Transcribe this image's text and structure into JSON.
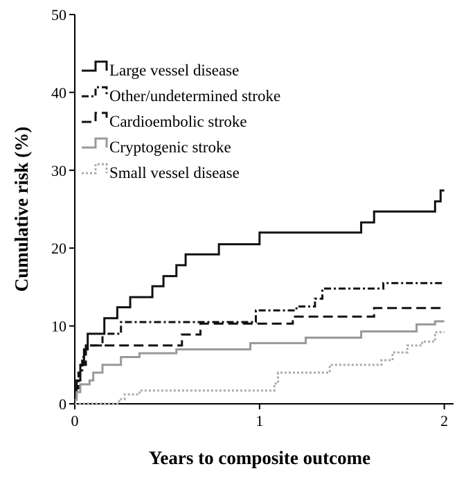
{
  "chart_data": {
    "type": "step",
    "x_label": "Years to composite outcome",
    "y_label": "Cumulative risk (%)",
    "xlim": [
      0,
      2.05
    ],
    "xticks": [
      0,
      1,
      2
    ],
    "ylim": [
      0,
      50
    ],
    "yticks": [
      0,
      10,
      20,
      30,
      40,
      50
    ],
    "grid": false,
    "legend": "upper left",
    "series": [
      {
        "name": "Large vessel disease",
        "color": "#111111",
        "dash": "solid",
        "x": [
          0,
          0.01,
          0.03,
          0.05,
          0.07,
          0.16,
          0.23,
          0.3,
          0.42,
          0.48,
          0.55,
          0.6,
          0.78,
          1.0,
          1.55,
          1.62,
          1.95,
          1.98,
          2.0
        ],
        "values": [
          1,
          3,
          5,
          7,
          9,
          11,
          12.4,
          13.7,
          15.1,
          16.4,
          17.8,
          19.2,
          20.5,
          22,
          23.3,
          24.7,
          26,
          27.4,
          27.4
        ]
      },
      {
        "name": "Other/undetermined stroke",
        "color": "#111111",
        "dash": "dashdot",
        "x": [
          0,
          0.02,
          0.04,
          0.06,
          0.15,
          0.25,
          0.98,
          1.2,
          1.3,
          1.34,
          1.67,
          2.0
        ],
        "values": [
          2,
          4,
          6,
          7.5,
          9,
          10.5,
          12,
          12.5,
          13.5,
          14.8,
          15.5,
          15.5
        ]
      },
      {
        "name": "Cardioembolic stroke",
        "color": "#111111",
        "dash": "dashed",
        "x": [
          0,
          0.03,
          0.06,
          0.58,
          0.68,
          1.18,
          1.62,
          2.0
        ],
        "values": [
          2,
          5,
          7.5,
          8.9,
          10.3,
          11.2,
          12.3,
          12.3
        ]
      },
      {
        "name": "Cryptogenic stroke",
        "color": "#999999",
        "dash": "solid",
        "x": [
          0,
          0.01,
          0.03,
          0.08,
          0.1,
          0.15,
          0.25,
          0.35,
          0.55,
          0.95,
          1.25,
          1.55,
          1.85,
          1.95,
          2.0
        ],
        "values": [
          0.5,
          1.5,
          2.5,
          3,
          4,
          5,
          6,
          6.5,
          7,
          7.8,
          8.5,
          9.3,
          10.2,
          10.6,
          10.6
        ]
      },
      {
        "name": "Small vessel disease",
        "color": "#aaaaaa",
        "dash": "dotted",
        "x": [
          0,
          0.24,
          0.27,
          0.35,
          1.08,
          1.1,
          1.38,
          1.66,
          1.72,
          1.8,
          1.88,
          1.95,
          2.0
        ],
        "values": [
          0,
          0.6,
          1.2,
          1.7,
          2.6,
          4,
          5,
          5.6,
          6.6,
          7.5,
          8,
          9.2,
          9.2
        ]
      }
    ]
  }
}
